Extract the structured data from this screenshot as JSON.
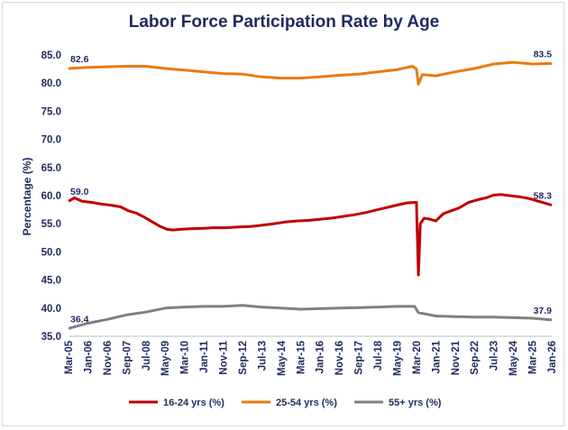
{
  "chart_data": {
    "type": "line",
    "title": "Labor Force Participation Rate by Age",
    "ylabel": "Percentage (%)",
    "xlabel": "",
    "ylim": [
      35.0,
      85.0
    ],
    "yticks": [
      "35.0",
      "40.0",
      "45.0",
      "50.0",
      "55.0",
      "60.0",
      "65.0",
      "70.0",
      "75.0",
      "80.0",
      "85.0"
    ],
    "xticks": [
      "Mar-05",
      "Jan-06",
      "Nov-06",
      "Sep-07",
      "Jul-08",
      "May-09",
      "Mar-10",
      "Jan-11",
      "Nov-11",
      "Sep-12",
      "Jul-13",
      "May-14",
      "Mar-15",
      "Jan-16",
      "Nov-16",
      "Sep-17",
      "Jul-18",
      "May-19",
      "Mar-20",
      "Jan-21",
      "Nov-21",
      "Sep-22",
      "Jul-23",
      "May-24",
      "Mar-25",
      "Jan-26"
    ],
    "grid": false,
    "legend_position": "bottom",
    "x_range": [
      "Mar-05",
      "Jan-26"
    ],
    "series": [
      {
        "name": "16-24 yrs (%)",
        "color": "#c00000",
        "first_label": "59.0",
        "last_label": "58.3",
        "points": [
          [
            "Mar-05",
            59.0
          ],
          [
            "Jun-05",
            59.6
          ],
          [
            "Oct-05",
            59.0
          ],
          [
            "Mar-06",
            58.8
          ],
          [
            "Aug-06",
            58.5
          ],
          [
            "Jan-07",
            58.3
          ],
          [
            "Jun-07",
            58.0
          ],
          [
            "Oct-07",
            57.3
          ],
          [
            "Feb-08",
            56.9
          ],
          [
            "Jun-08",
            56.2
          ],
          [
            "Oct-08",
            55.4
          ],
          [
            "Feb-09",
            54.6
          ],
          [
            "Jun-09",
            54.0
          ],
          [
            "Sep-09",
            53.9
          ],
          [
            "Jan-10",
            54.0
          ],
          [
            "Jun-10",
            54.1
          ],
          [
            "Jan-11",
            54.2
          ],
          [
            "Jun-11",
            54.3
          ],
          [
            "Jan-12",
            54.3
          ],
          [
            "Jun-12",
            54.4
          ],
          [
            "Jan-13",
            54.5
          ],
          [
            "Jun-13",
            54.7
          ],
          [
            "Jan-14",
            55.0
          ],
          [
            "Jul-14",
            55.3
          ],
          [
            "Jan-15",
            55.5
          ],
          [
            "Jul-15",
            55.6
          ],
          [
            "Jan-16",
            55.8
          ],
          [
            "Jul-16",
            56.0
          ],
          [
            "Jan-17",
            56.3
          ],
          [
            "Jul-17",
            56.6
          ],
          [
            "Jan-18",
            57.0
          ],
          [
            "Jul-18",
            57.5
          ],
          [
            "Jan-19",
            58.0
          ],
          [
            "Jun-19",
            58.4
          ],
          [
            "Oct-19",
            58.7
          ],
          [
            "Feb-20",
            58.8
          ],
          [
            "Mar-20",
            58.8
          ],
          [
            "Apr-20",
            45.9
          ],
          [
            "May-20",
            55.0
          ],
          [
            "Jul-20",
            56.0
          ],
          [
            "Oct-20",
            55.8
          ],
          [
            "Jan-21",
            55.5
          ],
          [
            "May-21",
            56.8
          ],
          [
            "Sep-21",
            57.3
          ],
          [
            "Jan-22",
            57.8
          ],
          [
            "Jun-22",
            58.8
          ],
          [
            "Nov-22",
            59.3
          ],
          [
            "Mar-23",
            59.6
          ],
          [
            "Jul-23",
            60.1
          ],
          [
            "Nov-23",
            60.2
          ],
          [
            "Mar-24",
            60.0
          ],
          [
            "Aug-24",
            59.8
          ],
          [
            "Jan-25",
            59.5
          ],
          [
            "Jun-25",
            59.0
          ],
          [
            "Oct-25",
            58.6
          ],
          [
            "Jan-26",
            58.3
          ]
        ]
      },
      {
        "name": "25-54 yrs (%)",
        "color": "#e97b12",
        "first_label": "82.6",
        "last_label": "83.5",
        "points": [
          [
            "Mar-05",
            82.6
          ],
          [
            "Jan-06",
            82.8
          ],
          [
            "Nov-06",
            82.9
          ],
          [
            "Sep-07",
            83.0
          ],
          [
            "Jul-08",
            83.0
          ],
          [
            "May-09",
            82.6
          ],
          [
            "Mar-10",
            82.3
          ],
          [
            "Jan-11",
            82.0
          ],
          [
            "Nov-11",
            81.7
          ],
          [
            "Sep-12",
            81.6
          ],
          [
            "Jul-13",
            81.1
          ],
          [
            "May-14",
            80.9
          ],
          [
            "Mar-15",
            80.9
          ],
          [
            "Jan-16",
            81.1
          ],
          [
            "Nov-16",
            81.4
          ],
          [
            "Sep-17",
            81.6
          ],
          [
            "Jul-18",
            82.0
          ],
          [
            "May-19",
            82.4
          ],
          [
            "Jan-20",
            83.0
          ],
          [
            "Mar-20",
            82.5
          ],
          [
            "Apr-20",
            79.8
          ],
          [
            "Jun-20",
            81.5
          ],
          [
            "Jan-21",
            81.3
          ],
          [
            "Nov-21",
            82.0
          ],
          [
            "Sep-22",
            82.6
          ],
          [
            "Jul-23",
            83.4
          ],
          [
            "May-24",
            83.7
          ],
          [
            "Mar-25",
            83.4
          ],
          [
            "Jan-26",
            83.5
          ]
        ]
      },
      {
        "name": "55+ yrs (%)",
        "color": "#808080",
        "first_label": "36.4",
        "last_label": "37.9",
        "points": [
          [
            "Mar-05",
            36.4
          ],
          [
            "Jan-06",
            37.3
          ],
          [
            "Nov-06",
            38.0
          ],
          [
            "Sep-07",
            38.8
          ],
          [
            "Jul-08",
            39.3
          ],
          [
            "May-09",
            40.0
          ],
          [
            "Mar-10",
            40.2
          ],
          [
            "Jan-11",
            40.3
          ],
          [
            "Nov-11",
            40.3
          ],
          [
            "Sep-12",
            40.5
          ],
          [
            "Jul-13",
            40.2
          ],
          [
            "May-14",
            40.0
          ],
          [
            "Mar-15",
            39.8
          ],
          [
            "Jan-16",
            39.9
          ],
          [
            "Nov-16",
            40.0
          ],
          [
            "Sep-17",
            40.1
          ],
          [
            "Jul-18",
            40.2
          ],
          [
            "May-19",
            40.3
          ],
          [
            "Feb-20",
            40.3
          ],
          [
            "Apr-20",
            39.2
          ],
          [
            "Jan-21",
            38.6
          ],
          [
            "Nov-21",
            38.5
          ],
          [
            "Sep-22",
            38.4
          ],
          [
            "Jul-23",
            38.4
          ],
          [
            "May-24",
            38.3
          ],
          [
            "Mar-25",
            38.2
          ],
          [
            "Jan-26",
            37.9
          ]
        ]
      }
    ]
  }
}
